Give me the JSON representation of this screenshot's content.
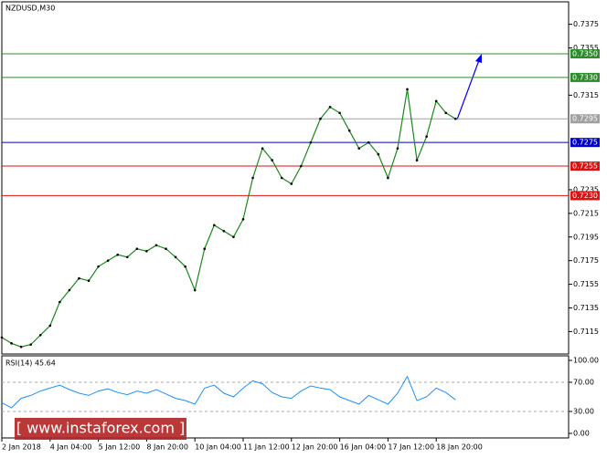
{
  "chart_data": {
    "type": "line",
    "title": "NZDUSD,M30",
    "categories": [
      "2 Jan 2018",
      null,
      null,
      null,
      null,
      "4 Jan 04:00",
      null,
      null,
      null,
      null,
      "5 Jan 12:00",
      null,
      null,
      null,
      null,
      "8 Jan 20:00",
      null,
      null,
      null,
      null,
      "10 Jan 04:00",
      null,
      null,
      null,
      null,
      "11 Jan 12:00",
      null,
      null,
      null,
      null,
      "12 Jan 20:00",
      null,
      null,
      null,
      null,
      "16 Jan 04:00",
      null,
      null,
      null,
      null,
      "17 Jan 12:00",
      null,
      null,
      null,
      null,
      "18 Jan 20:00",
      null,
      null
    ],
    "series": [
      {
        "name": "NZDUSD",
        "color": "#1a8a1a",
        "values": [
          0.711,
          0.7105,
          0.7102,
          0.7104,
          0.7112,
          0.712,
          0.714,
          0.715,
          0.716,
          0.7158,
          0.717,
          0.7175,
          0.718,
          0.7178,
          0.7185,
          0.7183,
          0.7188,
          0.7185,
          0.7178,
          0.717,
          0.715,
          0.7185,
          0.7205,
          0.72,
          0.7195,
          0.721,
          0.7245,
          0.727,
          0.726,
          0.7245,
          0.724,
          0.7255,
          0.7275,
          0.7295,
          0.7305,
          0.73,
          0.7285,
          0.727,
          0.7275,
          0.7265,
          0.7245,
          0.727,
          0.732,
          0.726,
          0.728,
          0.731,
          0.73,
          0.7295
        ]
      }
    ],
    "ylim": [
      0.7096,
      0.7394
    ],
    "yticks": [
      0.7375,
      0.7355,
      0.7315,
      0.7235,
      0.7215,
      0.7195,
      0.7175,
      0.7155,
      0.7135,
      0.7115
    ],
    "levels": [
      {
        "value": 0.735,
        "label": "0.7350",
        "color": "#2e8b2e"
      },
      {
        "value": 0.733,
        "label": "0.7330",
        "color": "#2e8b2e"
      },
      {
        "value": 0.7295,
        "label": "0.7295",
        "color": "#a0a0a0"
      },
      {
        "value": 0.7275,
        "label": "0.7275",
        "color": "#0000cc"
      },
      {
        "value": 0.7255,
        "label": "0.7255",
        "color": "#dd1111"
      },
      {
        "value": 0.723,
        "label": "0.7230",
        "color": "#dd1111"
      }
    ],
    "rsi": {
      "title": "RSI(14) 45.64",
      "color": "#1e90ff",
      "ylim": [
        0,
        100
      ],
      "yticks": [
        {
          "value": 100,
          "label": "100.00"
        },
        {
          "value": 70,
          "label": "70.00"
        },
        {
          "value": 30,
          "label": "30.00"
        },
        {
          "value": 0,
          "label": "0.00"
        }
      ],
      "values": [
        42,
        35,
        48,
        52,
        58,
        62,
        66,
        60,
        55,
        52,
        58,
        61,
        56,
        53,
        58,
        55,
        60,
        54,
        48,
        45,
        40,
        62,
        66,
        55,
        50,
        62,
        72,
        68,
        56,
        50,
        48,
        58,
        65,
        62,
        60,
        50,
        45,
        40,
        52,
        46,
        40,
        55,
        78,
        45,
        50,
        62,
        56,
        46
      ]
    },
    "watermark": "[ www.instaforex.com ]"
  }
}
